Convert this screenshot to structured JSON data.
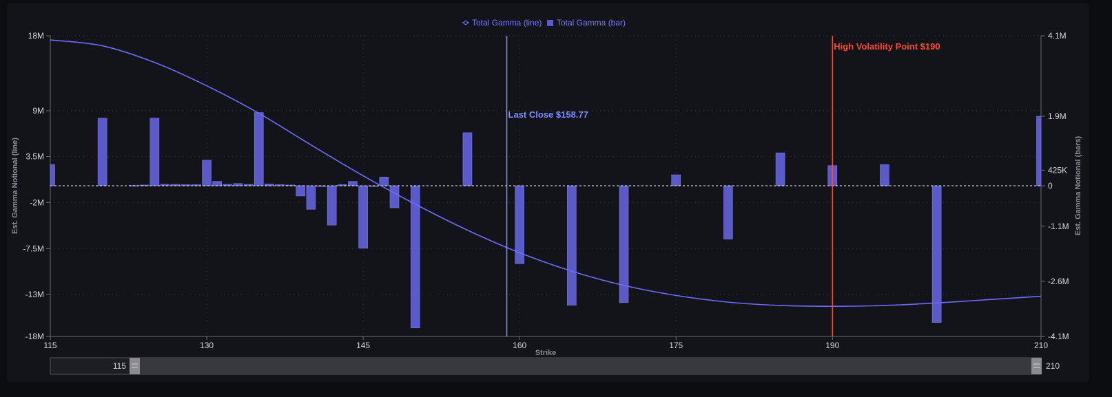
{
  "chart_data": {
    "type": "bar",
    "legend": [
      {
        "label": "Total Gamma (line)",
        "symbol": "line-circle",
        "color": "#6c6cff"
      },
      {
        "label": "Total Gamma (bar)",
        "symbol": "square",
        "color": "#5a5ac8"
      }
    ],
    "legend_position": "top-center",
    "xlabel": "Strike",
    "ylabel_left": "Est. Gamma Notional (line)",
    "ylabel_right": "Est. Gamma Notional (bars)",
    "x_range": [
      115,
      210
    ],
    "x_ticks": [
      115,
      130,
      145,
      160,
      175,
      190,
      210
    ],
    "y_left_ticks": [
      {
        "value": 18000000,
        "label": "18M"
      },
      {
        "value": 9000000,
        "label": "9M"
      },
      {
        "value": 3500000,
        "label": "3.5M"
      },
      {
        "value": -2000000,
        "label": "-2M"
      },
      {
        "value": -7500000,
        "label": "-7.5M"
      },
      {
        "value": -13000000,
        "label": "-13M"
      },
      {
        "value": -18000000,
        "label": "-18M"
      }
    ],
    "y_right_ticks": [
      {
        "value": 4100000,
        "label": "4.1M"
      },
      {
        "value": 1900000,
        "label": "1.9M"
      },
      {
        "value": 425000,
        "label": "425K"
      },
      {
        "value": 0,
        "label": "0"
      },
      {
        "value": -1100000,
        "label": "-1.1M"
      },
      {
        "value": -2600000,
        "label": "-2.6M"
      },
      {
        "value": -4100000,
        "label": "-4.1M"
      }
    ],
    "grid": true,
    "bar_series": {
      "name": "Total Gamma (bar)",
      "color": "#5a5ac8",
      "points": [
        {
          "x": 115,
          "y": 580000
        },
        {
          "x": 120,
          "y": 1850000
        },
        {
          "x": 123,
          "y": 10000
        },
        {
          "x": 124,
          "y": 20000
        },
        {
          "x": 125,
          "y": 1850000
        },
        {
          "x": 126,
          "y": 40000
        },
        {
          "x": 127,
          "y": 40000
        },
        {
          "x": 128,
          "y": 30000
        },
        {
          "x": 129,
          "y": 30000
        },
        {
          "x": 130,
          "y": 700000
        },
        {
          "x": 131,
          "y": 120000
        },
        {
          "x": 132,
          "y": 40000
        },
        {
          "x": 133,
          "y": 60000
        },
        {
          "x": 134,
          "y": 40000
        },
        {
          "x": 135,
          "y": 2000000
        },
        {
          "x": 136,
          "y": 50000
        },
        {
          "x": 137,
          "y": 30000
        },
        {
          "x": 138,
          "y": 20000
        },
        {
          "x": 139,
          "y": -280000
        },
        {
          "x": 140,
          "y": -640000
        },
        {
          "x": 141,
          "y": -20000
        },
        {
          "x": 142,
          "y": -1070000
        },
        {
          "x": 143,
          "y": 30000
        },
        {
          "x": 144,
          "y": 120000
        },
        {
          "x": 145,
          "y": -1700000
        },
        {
          "x": 146,
          "y": -10000
        },
        {
          "x": 147,
          "y": 240000
        },
        {
          "x": 148,
          "y": -600000
        },
        {
          "x": 150,
          "y": -3870000
        },
        {
          "x": 155,
          "y": 1450000
        },
        {
          "x": 160,
          "y": -2120000
        },
        {
          "x": 165,
          "y": -3250000
        },
        {
          "x": 170,
          "y": -3180000
        },
        {
          "x": 175,
          "y": 300000
        },
        {
          "x": 180,
          "y": -1450000
        },
        {
          "x": 185,
          "y": 900000
        },
        {
          "x": 190,
          "y": 550000
        },
        {
          "x": 195,
          "y": 580000
        },
        {
          "x": 200,
          "y": -3720000
        },
        {
          "x": 210,
          "y": 1900000
        }
      ]
    },
    "line_series": {
      "name": "Total Gamma (line)",
      "color": "#6c6cff",
      "points": [
        {
          "x": 115,
          "y": 17500000
        },
        {
          "x": 120,
          "y": 16800000
        },
        {
          "x": 125,
          "y": 14800000
        },
        {
          "x": 130,
          "y": 12000000
        },
        {
          "x": 135,
          "y": 8700000
        },
        {
          "x": 140,
          "y": 4900000
        },
        {
          "x": 145,
          "y": 1200000
        },
        {
          "x": 150,
          "y": -2200000
        },
        {
          "x": 155,
          "y": -5300000
        },
        {
          "x": 160,
          "y": -8000000
        },
        {
          "x": 165,
          "y": -10200000
        },
        {
          "x": 170,
          "y": -11900000
        },
        {
          "x": 175,
          "y": -13100000
        },
        {
          "x": 180,
          "y": -13900000
        },
        {
          "x": 185,
          "y": -14300000
        },
        {
          "x": 190,
          "y": -14400000
        },
        {
          "x": 195,
          "y": -14300000
        },
        {
          "x": 200,
          "y": -14000000
        },
        {
          "x": 205,
          "y": -13600000
        },
        {
          "x": 210,
          "y": -13200000
        }
      ]
    },
    "annotations": [
      {
        "label": "Last Close $158.77",
        "x": 158.77,
        "color": "#7d8cff"
      },
      {
        "label": "High Volatility Point $190",
        "x": 190,
        "color": "#ff4a2e"
      }
    ]
  },
  "range_slider": {
    "min_label": "115",
    "max_label": "210"
  }
}
